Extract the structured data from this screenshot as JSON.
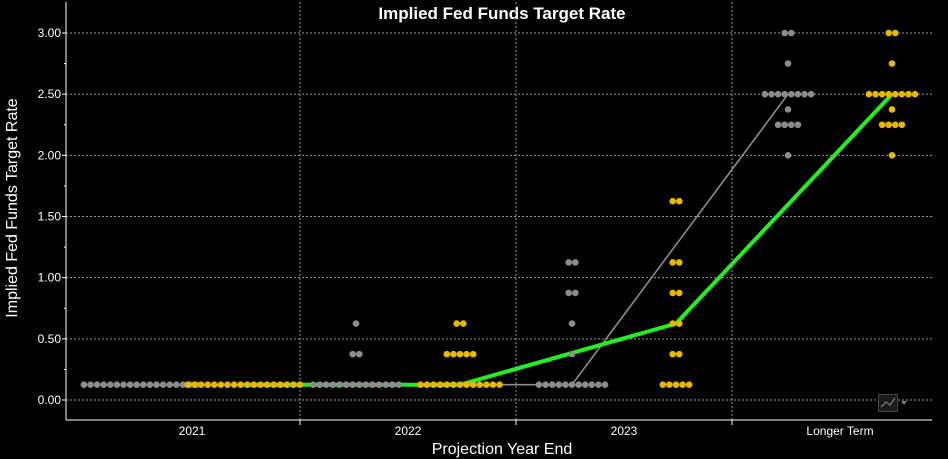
{
  "chart_data": {
    "type": "scatter",
    "title": "Implied Fed Funds Target Rate",
    "xlabel": "Projection Year End",
    "ylabel": "Implied Fed Funds Target Rate",
    "categories": [
      "2021",
      "2022",
      "2023",
      "Longer Term"
    ],
    "ylim": [
      -0.1,
      3.1
    ],
    "yticks": [
      "0.00",
      "0.50",
      "1.00",
      "1.50",
      "2.00",
      "2.50",
      "3.00"
    ],
    "grid": true,
    "colors": {
      "dots_previous": "#8c8c8c",
      "dots_current": "#e6b800",
      "median_previous": "#8c8c8c",
      "median_current": "#22ee22",
      "background": "#000000"
    },
    "series": [
      {
        "kind": "dots",
        "color_key": "dots_previous",
        "groups": [
          {
            "category": "2021",
            "dots": [
              {
                "y": 0.125,
                "count": 18
              }
            ]
          },
          {
            "category": "2022",
            "dots": [
              {
                "y": 0.125,
                "count": 14
              },
              {
                "y": 0.375,
                "count": 2
              },
              {
                "y": 0.625,
                "count": 1
              }
            ]
          },
          {
            "category": "2023",
            "dots": [
              {
                "y": 0.125,
                "count": 11
              },
              {
                "y": 0.375,
                "count": 1
              },
              {
                "y": 0.625,
                "count": 1
              },
              {
                "y": 0.875,
                "count": 2
              },
              {
                "y": 1.125,
                "count": 2
              }
            ]
          },
          {
            "category": "Longer Term",
            "dots": [
              {
                "y": 2.0,
                "count": 1
              },
              {
                "y": 2.25,
                "count": 4
              },
              {
                "y": 2.375,
                "count": 1
              },
              {
                "y": 2.5,
                "count": 8
              },
              {
                "y": 2.75,
                "count": 1
              },
              {
                "y": 3.0,
                "count": 2
              }
            ]
          }
        ]
      },
      {
        "kind": "dots",
        "color_key": "dots_current",
        "groups": [
          {
            "category": "2021",
            "dots": [
              {
                "y": 0.125,
                "count": 18
              }
            ]
          },
          {
            "category": "2022",
            "dots": [
              {
                "y": 0.125,
                "count": 13
              },
              {
                "y": 0.375,
                "count": 5
              },
              {
                "y": 0.625,
                "count": 2
              }
            ]
          },
          {
            "category": "2023",
            "dots": [
              {
                "y": 0.125,
                "count": 5
              },
              {
                "y": 0.375,
                "count": 2
              },
              {
                "y": 0.625,
                "count": 2
              },
              {
                "y": 0.875,
                "count": 2
              },
              {
                "y": 1.125,
                "count": 2
              },
              {
                "y": 1.625,
                "count": 2
              }
            ]
          },
          {
            "category": "Longer Term",
            "dots": [
              {
                "y": 2.0,
                "count": 1
              },
              {
                "y": 2.25,
                "count": 4
              },
              {
                "y": 2.375,
                "count": 1
              },
              {
                "y": 2.5,
                "count": 8
              },
              {
                "y": 2.75,
                "count": 1
              },
              {
                "y": 3.0,
                "count": 2
              }
            ]
          }
        ]
      },
      {
        "kind": "median",
        "color_key": "median_previous",
        "points": [
          0.125,
          0.125,
          0.125,
          2.5
        ]
      },
      {
        "kind": "median",
        "color_key": "median_current",
        "points": [
          0.125,
          0.125,
          0.625,
          2.5
        ]
      }
    ]
  },
  "widget": {
    "icon": "chart-options-icon"
  }
}
